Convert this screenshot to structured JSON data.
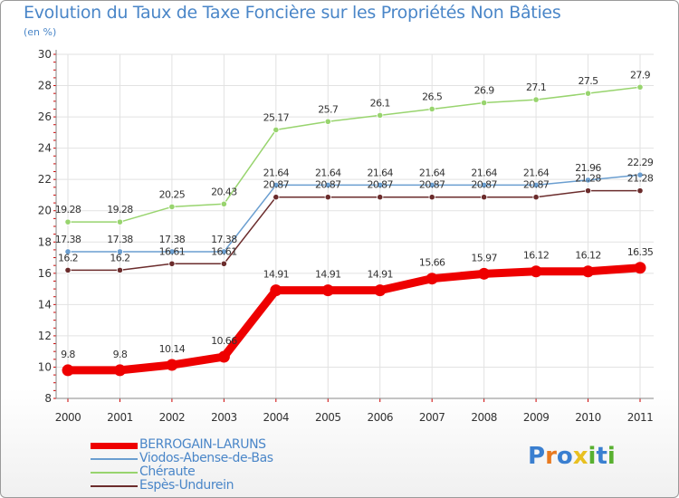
{
  "chart_data": {
    "type": "line",
    "title": "Evolution du Taux de Taxe Foncière sur les Propriétés Non Bâties",
    "ylabel": "(en %)",
    "xlabel": "",
    "ylim": [
      8,
      30
    ],
    "yticks": [
      8,
      10,
      12,
      14,
      16,
      18,
      20,
      22,
      24,
      26,
      28,
      30
    ],
    "ytick_labels": [
      "8",
      "10",
      "12",
      "14",
      "16",
      "18",
      "20",
      "22",
      "24",
      "26",
      "28",
      "30"
    ],
    "categories": [
      "2000",
      "2001",
      "2002",
      "2003",
      "2004",
      "2005",
      "2006",
      "2007",
      "2008",
      "2009",
      "2010",
      "2011"
    ],
    "grid": true,
    "series": [
      {
        "name": "Espès-Undurein",
        "color": "#6b2c2c",
        "values": [
          16.2,
          16.2,
          16.61,
          16.61,
          20.87,
          20.87,
          20.87,
          20.87,
          20.87,
          20.87,
          21.28,
          21.28
        ],
        "labels": [
          "16.2",
          "16.2",
          "16.61",
          "16.61",
          "20.87",
          "20.87",
          "20.87",
          "20.87",
          "20.87",
          "20.87",
          "21.28",
          "21.28"
        ]
      },
      {
        "name": "Viodos-Abense-de-Bas",
        "color": "#6a9ed0",
        "values": [
          17.38,
          17.38,
          17.38,
          17.38,
          21.64,
          21.64,
          21.64,
          21.64,
          21.64,
          21.64,
          21.96,
          22.29
        ],
        "labels": [
          "17.38",
          "17.38",
          "17.38",
          "17.38",
          "21.64",
          "21.64",
          "21.64",
          "21.64",
          "21.64",
          "21.64",
          "21.96",
          "22.29"
        ]
      },
      {
        "name": "Chéraute",
        "color": "#98d46e",
        "values": [
          19.28,
          19.28,
          20.25,
          20.43,
          25.17,
          25.7,
          26.1,
          26.5,
          26.9,
          27.1,
          27.5,
          27.9
        ],
        "labels": [
          "19.28",
          "19.28",
          "20.25",
          "20.43",
          "25.17",
          "25.7",
          "26.1",
          "26.5",
          "26.9",
          "27.1",
          "27.5",
          "27.9"
        ]
      },
      {
        "name": "BERROGAIN-LARUNS",
        "color": "#ee0000",
        "values": [
          9.8,
          9.8,
          10.14,
          10.66,
          14.91,
          14.91,
          14.91,
          15.66,
          15.97,
          16.12,
          16.12,
          16.35
        ],
        "labels": [
          "9.8",
          "9.8",
          "10.14",
          "10.66",
          "14.91",
          "14.91",
          "14.91",
          "15.66",
          "15.97",
          "16.12",
          "16.12",
          "16.35"
        ]
      }
    ],
    "legend": [
      "BERROGAIN-LARUNS",
      "Viodos-Abense-de-Bas",
      "Chéraute",
      "Espès-Undurein"
    ]
  },
  "brand": {
    "letters": [
      "P",
      "r",
      "o",
      "x",
      "i",
      "t",
      "i"
    ],
    "colors": [
      "#3a7fd0",
      "#e87a20",
      "#3a7fd0",
      "#e8c020",
      "#58b030",
      "#3a7fd0",
      "#58b030"
    ]
  }
}
